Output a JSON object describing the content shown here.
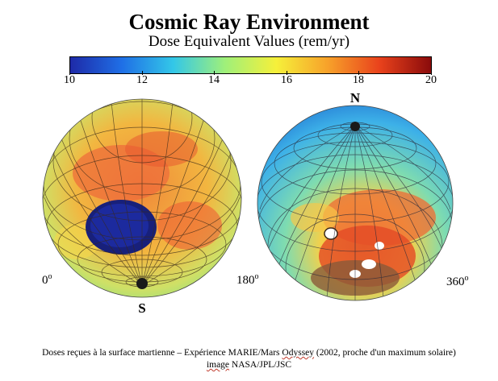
{
  "figure": {
    "title": "Cosmic Ray Environment",
    "subtitle": "Dose Equivalent Values (rem/yr)"
  },
  "colorbar": {
    "min": 10,
    "max": 20,
    "ticks": [
      "10",
      "12",
      "14",
      "16",
      "18",
      "20"
    ],
    "colors": [
      "#1e2aa8",
      "#1f6fe6",
      "#33c7e8",
      "#9ff07a",
      "#f6f03a",
      "#f7a12a",
      "#e9421c",
      "#8a0b0b"
    ]
  },
  "globe_left": {
    "pole_label": "S",
    "lon_left": "0",
    "lon_right": "180",
    "degree_symbol": "o"
  },
  "globe_right": {
    "pole_label": "N",
    "lon_right": "360",
    "degree_symbol": "o"
  },
  "caption": {
    "line1_a": "Doses reçues à la surface martienne – Expérience MARIE/Mars",
    "line1_b": "Odyssey",
    "line1_c": "(2002, proche d'un maximum solaire)",
    "line2_a": "image",
    "line2_b": "NASA/JPL/JSC"
  }
}
